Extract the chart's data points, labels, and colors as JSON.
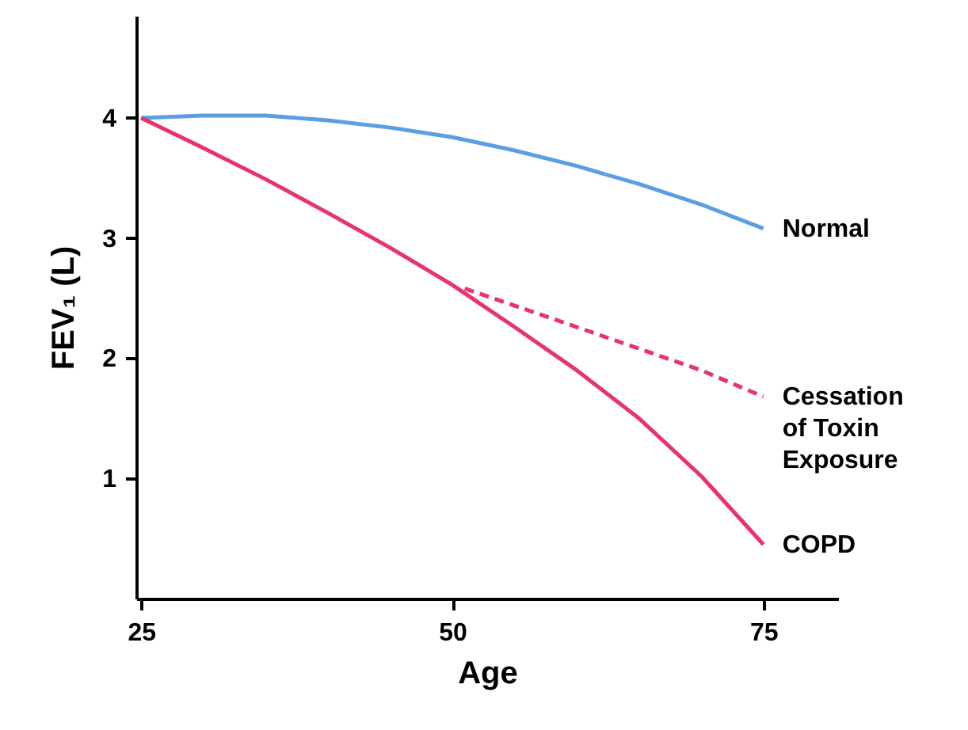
{
  "chart_data": {
    "type": "line",
    "xlabel": "Age",
    "ylabel": "FEV₁ (L)",
    "xlim": [
      24.6,
      81
    ],
    "xticks": [
      25,
      50,
      75
    ],
    "ylim": [
      0,
      4.85
    ],
    "yticks": [
      1,
      2,
      3,
      4
    ],
    "grid": false,
    "marker": "none",
    "series": [
      {
        "name": "Normal",
        "color": "#5b9fe3",
        "line_style": "solid",
        "x": [
          25,
          30,
          35,
          40,
          45,
          50,
          55,
          60,
          65,
          70,
          75
        ],
        "values": [
          4.0,
          4.02,
          4.02,
          3.98,
          3.92,
          3.84,
          3.73,
          3.6,
          3.45,
          3.28,
          3.08
        ]
      },
      {
        "name": "Cessation\nof Toxin\nExposure",
        "color": "#e8336e",
        "line_style": "dashed",
        "x": [
          51,
          60,
          70,
          75
        ],
        "values": [
          2.58,
          2.26,
          1.9,
          1.68
        ]
      },
      {
        "name": "COPD",
        "color": "#e8336e",
        "line_style": "solid",
        "x": [
          25,
          30,
          35,
          40,
          45,
          50,
          55,
          60,
          65,
          70,
          75
        ],
        "values": [
          4.0,
          3.75,
          3.49,
          3.21,
          2.92,
          2.61,
          2.26,
          1.9,
          1.5,
          1.02,
          0.45
        ]
      }
    ]
  }
}
